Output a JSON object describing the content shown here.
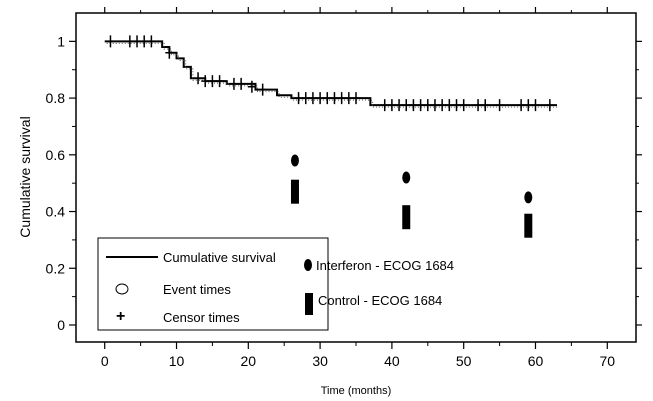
{
  "chart_data": {
    "type": "line",
    "xlabel": "Time (months)",
    "ylabel": "Cumulative survival",
    "xlim": [
      -4,
      74
    ],
    "ylim": [
      -0.06,
      1.1
    ],
    "xticks": [
      0,
      10,
      20,
      30,
      40,
      50,
      60,
      70
    ],
    "yticks": [
      0,
      0.2,
      0.4,
      0.6,
      0.8,
      1
    ],
    "xtick_labels": [
      "0",
      "10",
      "20",
      "30",
      "40",
      "50",
      "60",
      "70"
    ],
    "ytick_labels": [
      "0",
      "0.2",
      "0.4",
      "0.6",
      "0.8",
      "1"
    ],
    "grid": false,
    "legend_position": "bottom-left",
    "series": [
      {
        "name": "Cumulative survival",
        "style": "step",
        "x": [
          0,
          7,
          8,
          9,
          10,
          11,
          12,
          14,
          17,
          21,
          24,
          26,
          36.5,
          37,
          63
        ],
        "y": [
          1.0,
          1.0,
          0.98,
          0.96,
          0.94,
          0.91,
          0.87,
          0.86,
          0.85,
          0.83,
          0.81,
          0.8,
          0.8,
          0.775,
          0.775
        ]
      },
      {
        "name": "Censor times",
        "style": "plus",
        "x": [
          0.8,
          3.5,
          4.5,
          5.5,
          6.5,
          9,
          13,
          14,
          15,
          16,
          18,
          19,
          20.5,
          22,
          27,
          28,
          29,
          30,
          31,
          32,
          33,
          34,
          35,
          39,
          40,
          41,
          42,
          43,
          44,
          45,
          46,
          47,
          48,
          49,
          50,
          52,
          53,
          55,
          58,
          59,
          60,
          62
        ],
        "y": [
          1.0,
          1.0,
          1.0,
          1.0,
          1.0,
          0.96,
          0.87,
          0.86,
          0.86,
          0.86,
          0.85,
          0.85,
          0.84,
          0.83,
          0.8,
          0.8,
          0.8,
          0.8,
          0.8,
          0.8,
          0.8,
          0.8,
          0.8,
          0.775,
          0.775,
          0.775,
          0.775,
          0.775,
          0.775,
          0.775,
          0.775,
          0.775,
          0.775,
          0.775,
          0.775,
          0.775,
          0.775,
          0.775,
          0.775,
          0.775,
          0.775,
          0.775
        ]
      },
      {
        "name": "Interferon - ECOG 1684",
        "style": "marker",
        "x": [
          26.5,
          42,
          59
        ],
        "y": [
          0.58,
          0.52,
          0.45
        ]
      },
      {
        "name": "Control - ECOG 1684",
        "style": "bar-marker",
        "x": [
          26.5,
          42,
          59
        ],
        "y": [
          0.47,
          0.38,
          0.35
        ]
      }
    ],
    "legend": {
      "left_entries": [
        "Cumulative survival",
        "Event times",
        "Censor times"
      ],
      "right_entries": [
        "Interferon - ECOG 1684",
        "Control - ECOG 1684"
      ]
    }
  }
}
